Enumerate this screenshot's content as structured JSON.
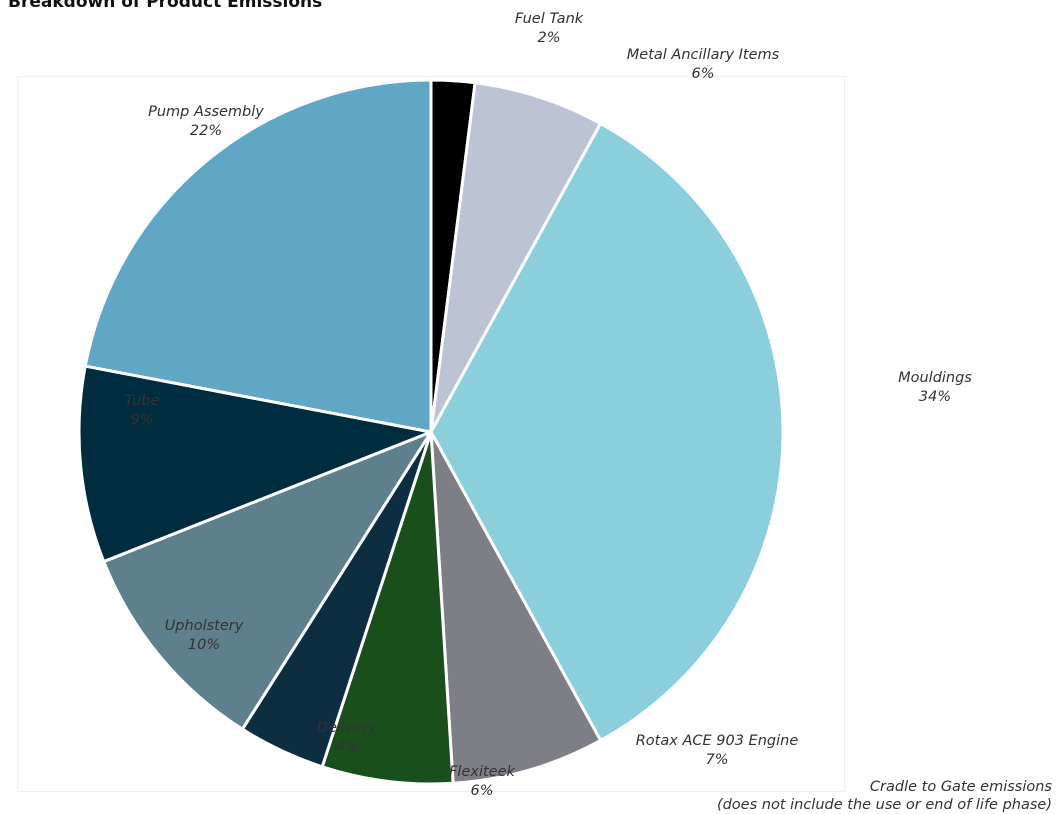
{
  "chart_data": {
    "type": "pie",
    "title": "Breakdown of Product Emissions",
    "slices": [
      {
        "label": "Fuel Tank",
        "value": 2,
        "value_label": "2%",
        "color": "#000000"
      },
      {
        "label": "Metal Ancillary Items",
        "value": 6,
        "value_label": "6%",
        "color": "#bcc3d4"
      },
      {
        "label": "Mouldings",
        "value": 34,
        "value_label": "34%",
        "color": "#8bcfdc"
      },
      {
        "label": "Rotax ACE 903 Engine",
        "value": 7,
        "value_label": "7%",
        "color": "#7e7e86"
      },
      {
        "label": "Flexiteek",
        "value": 6,
        "value_label": "6%",
        "color": "#184f1a"
      },
      {
        "label": "Delivery",
        "value": 4,
        "value_label": "4%",
        "color": "#0d2e41"
      },
      {
        "label": "Upholstery",
        "value": 10,
        "value_label": "10%",
        "color": "#5d808c"
      },
      {
        "label": "Tube",
        "value": 9,
        "value_label": "9%",
        "color": "#002c3f"
      },
      {
        "label": "Pump Assembly",
        "value": 22,
        "value_label": "22%",
        "color": "#5fa7c5"
      }
    ],
    "footnote": [
      "Cradle to Gate emissions",
      "(does not include the use or end of life phase)"
    ]
  }
}
